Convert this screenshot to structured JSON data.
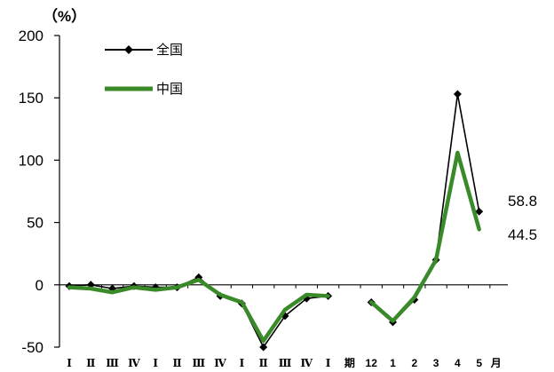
{
  "chart_data": {
    "type": "line",
    "unit_label": "（%）",
    "ylim": [
      -50,
      200
    ],
    "yticks": [
      "200",
      "150",
      "100",
      "50",
      "0",
      "-50"
    ],
    "categories": [
      "Ⅰ",
      "Ⅱ",
      "Ⅲ",
      "Ⅳ",
      "Ⅰ",
      "Ⅱ",
      "Ⅲ",
      "Ⅳ",
      "Ⅰ",
      "Ⅱ",
      "Ⅲ",
      "Ⅳ",
      "Ⅰ",
      "期",
      "12",
      "1",
      "2",
      "3",
      "4",
      "5"
    ],
    "month_suffix": "月",
    "series": [
      {
        "name": "全国",
        "color": "#000000",
        "marker": "diamond",
        "values": [
          -1,
          0,
          -3,
          -1,
          -2,
          -2,
          6,
          -9,
          -15,
          -50,
          -25,
          -11,
          -9,
          null,
          -14,
          -30,
          -12,
          20,
          153,
          58.8
        ]
      },
      {
        "name": "中国",
        "color": "#3a8a2a",
        "marker": "none",
        "values": [
          -2,
          -3,
          -6,
          -2,
          -4,
          -2,
          4,
          -8,
          -14,
          -45,
          -20,
          -8,
          -9,
          null,
          -14,
          -29,
          -10,
          20,
          106,
          44.5
        ]
      }
    ],
    "end_labels": [
      "58.8",
      "44.5"
    ],
    "grid": false,
    "legend_position": "top-left"
  }
}
